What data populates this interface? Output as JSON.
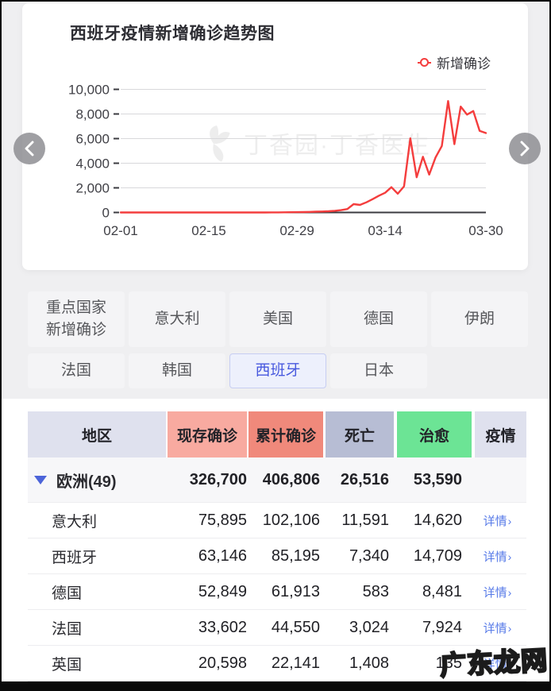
{
  "chart_card": {
    "title": "西班牙疫情新增确诊趋势图",
    "legend": {
      "label": "新增确诊",
      "color": "#f43d3d"
    },
    "watermark_text": "丁香园·丁香医生"
  },
  "chart_data": {
    "type": "line",
    "title": "西班牙疫情新增确诊趋势图",
    "x_start": "02-01",
    "x_end": "03-30",
    "x_tick_labels": [
      "02-01",
      "02-15",
      "02-29",
      "03-14",
      "03-30"
    ],
    "x_tick_days": [
      0,
      14,
      28,
      42,
      58
    ],
    "y_ticks": [
      0,
      2000,
      4000,
      6000,
      8000,
      10000
    ],
    "y_tick_labels": [
      "0",
      "2,000",
      "4,000",
      "6,000",
      "8,000",
      "10,000"
    ],
    "ylim": [
      0,
      10000
    ],
    "grid": true,
    "legend_position": "top-right",
    "series": [
      {
        "name": "新增确诊",
        "color": "#f43d3d",
        "values": [
          0,
          0,
          1,
          0,
          0,
          0,
          1,
          0,
          0,
          0,
          0,
          0,
          1,
          0,
          0,
          0,
          0,
          0,
          0,
          0,
          0,
          0,
          1,
          2,
          4,
          7,
          11,
          17,
          25,
          35,
          48,
          62,
          78,
          98,
          135,
          185,
          280,
          680,
          615,
          820,
          1080,
          1360,
          1600,
          2050,
          1520,
          2120,
          6020,
          2860,
          4520,
          3080,
          4470,
          5400,
          9050,
          5550,
          8600,
          7950,
          8240,
          6630,
          6450
        ]
      }
    ]
  },
  "carousel": {
    "prev_label": "previous chart",
    "next_label": "next chart"
  },
  "tabs": {
    "active": "西班牙",
    "items": [
      {
        "label": "重点国家\n新增确诊"
      },
      {
        "label": "意大利"
      },
      {
        "label": "美国"
      },
      {
        "label": "德国"
      },
      {
        "label": "伊朗"
      },
      {
        "label": "法国"
      },
      {
        "label": "韩国"
      },
      {
        "label": "西班牙"
      },
      {
        "label": "日本"
      }
    ]
  },
  "table": {
    "link_arrow": "›",
    "headers": [
      {
        "label": "地区",
        "color": "#dfe1ee"
      },
      {
        "label": "现存确诊",
        "color": "#f8aaa0"
      },
      {
        "label": "累计确诊",
        "color": "#f0897b"
      },
      {
        "label": "死亡",
        "color": "#b7bdd4"
      },
      {
        "label": "治愈",
        "color": "#6ce495"
      },
      {
        "label": "疫情",
        "color": "#dfe1ee"
      }
    ],
    "summary_row": {
      "region": "欧洲(49)",
      "current": "326,700",
      "total": "406,806",
      "deaths": "26,516",
      "cured": "53,590"
    },
    "rows": [
      {
        "region": "意大利",
        "current": "75,895",
        "total": "102,106",
        "deaths": "11,591",
        "cured": "14,620",
        "link": "详情"
      },
      {
        "region": "西班牙",
        "current": "63,146",
        "total": "85,195",
        "deaths": "7,340",
        "cured": "14,709",
        "link": "详情"
      },
      {
        "region": "德国",
        "current": "52,849",
        "total": "61,913",
        "deaths": "583",
        "cured": "8,481",
        "link": "详情"
      },
      {
        "region": "法国",
        "current": "33,602",
        "total": "44,550",
        "deaths": "3,024",
        "cured": "7,924",
        "link": "详情"
      },
      {
        "region": "英国",
        "current": "20,598",
        "total": "22,141",
        "deaths": "1,408",
        "cured": "135",
        "link": "详情"
      }
    ]
  },
  "page_watermark": "广东龙网"
}
